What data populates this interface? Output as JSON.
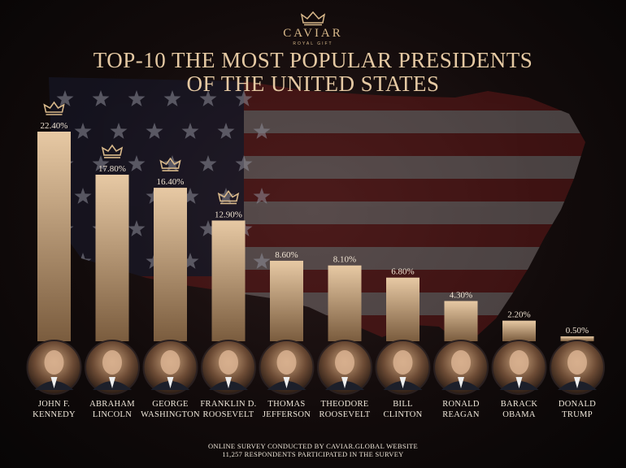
{
  "brand": {
    "name": "CAVIAR",
    "tagline": "ROYAL GIFT",
    "crown_icon": "crown-icon"
  },
  "title": {
    "line1": "Top-10 the most popular presidents",
    "line2": "of the United States"
  },
  "colors": {
    "bar_top": "#e7c9a4",
    "bar_bottom": "#7a5c3e",
    "label": "#efe3d2",
    "accent": "#d8b88a"
  },
  "chart_data": {
    "type": "bar",
    "unit": "%",
    "categories": [
      "John F. Kennedy",
      "Abraham Lincoln",
      "George Washington",
      "Franklin D. Roosevelt",
      "Thomas Jefferson",
      "Theodore Roosevelt",
      "Bill Clinton",
      "Ronald Reagan",
      "Barack Obama",
      "Donald Trump"
    ],
    "name_lines": [
      [
        "John F.",
        "Kennedy"
      ],
      [
        "Abraham",
        "Lincoln"
      ],
      [
        "George",
        "Washington"
      ],
      [
        "Franklin D.",
        "Roosevelt"
      ],
      [
        "Thomas",
        "Jefferson"
      ],
      [
        "Theodore",
        "Roosevelt"
      ],
      [
        "Bill",
        "Clinton"
      ],
      [
        "Ronald",
        "Reagan"
      ],
      [
        "Barack",
        "Obama"
      ],
      [
        "Donald",
        "Trump"
      ]
    ],
    "values": [
      22.4,
      17.8,
      16.4,
      12.9,
      8.6,
      8.1,
      6.8,
      4.3,
      2.2,
      0.5
    ],
    "value_labels": [
      "22.40%",
      "17.80%",
      "16.40%",
      "12.90%",
      "8.60%",
      "8.10%",
      "6.80%",
      "4.30%",
      "2.20%",
      "0.50%"
    ],
    "crowned": [
      true,
      true,
      true,
      true,
      false,
      false,
      false,
      false,
      false,
      false
    ],
    "ylim": [
      0,
      22.4
    ],
    "title": "Top-10 the most popular presidents of the United States",
    "xlabel": "",
    "ylabel": "",
    "grid": false,
    "legend": "none"
  },
  "footer": {
    "line1": "Online survey conducted by Caviar.global website",
    "line2": "11,257 respondents participated in the survey"
  }
}
